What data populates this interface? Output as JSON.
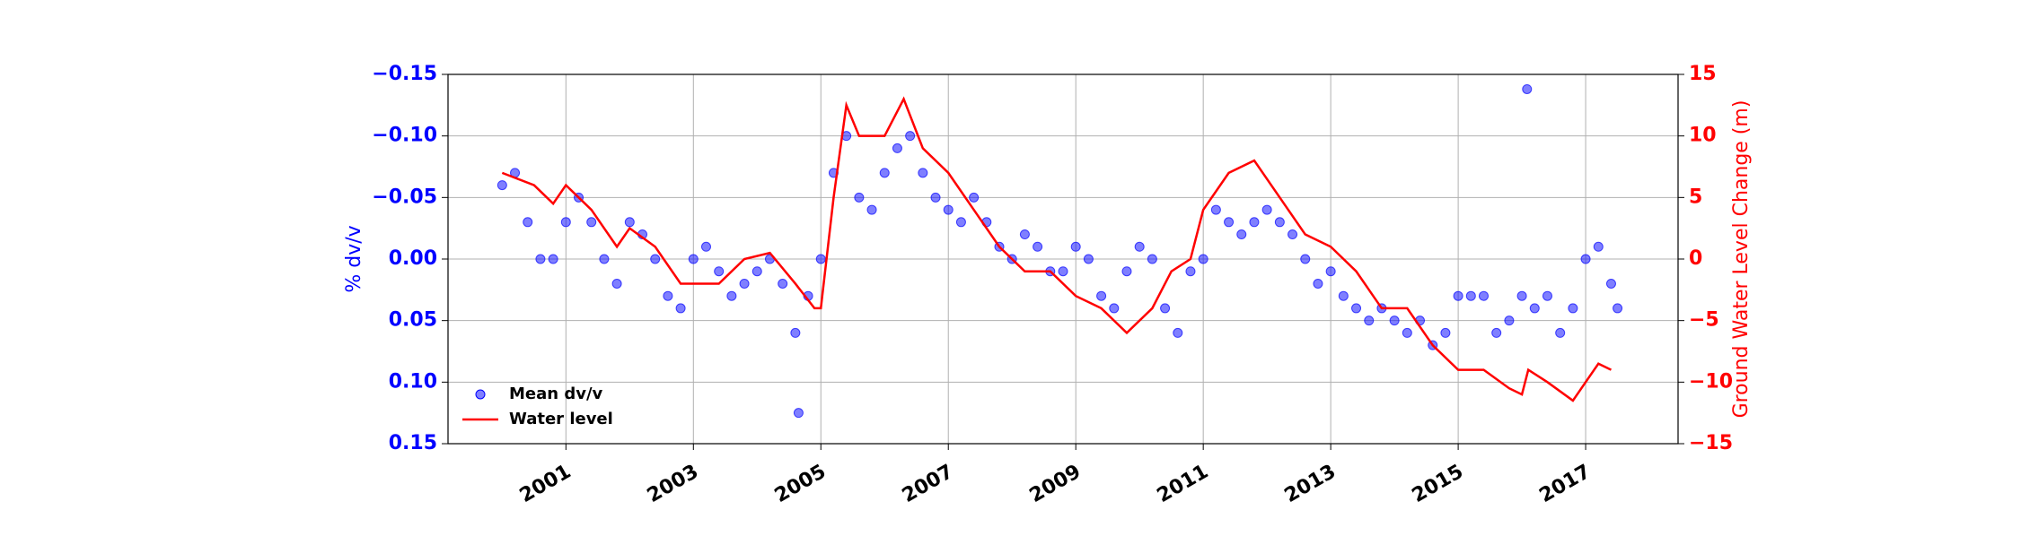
{
  "chart_data": {
    "type": "scatter",
    "y_label": "% dv/v",
    "y2_label": "Ground Water Level Change (m)",
    "xlim": [
      1999.15,
      2018.45
    ],
    "xticks": [
      2001,
      2003,
      2005,
      2007,
      2009,
      2011,
      2013,
      2015,
      2017
    ],
    "ylim": [
      0.15,
      -0.15
    ],
    "yticks": [
      {
        "value": -0.15,
        "label": "−0.15"
      },
      {
        "value": -0.1,
        "label": "−0.10"
      },
      {
        "value": -0.05,
        "label": "−0.05"
      },
      {
        "value": 0,
        "label": "0.00"
      },
      {
        "value": 0.05,
        "label": "0.05"
      },
      {
        "value": 0.1,
        "label": "0.10"
      },
      {
        "value": 0.15,
        "label": "0.15"
      }
    ],
    "y2lim": [
      -15,
      15
    ],
    "y2ticks": [
      {
        "value": -15,
        "label": "−15"
      },
      {
        "value": -10,
        "label": "−10"
      },
      {
        "value": -5,
        "label": "−5"
      },
      0,
      5,
      10,
      15
    ],
    "grid": true,
    "legend": "lower left",
    "series": [
      {
        "name": "Mean dv/v",
        "color": "#0000ff",
        "kind": "scatter",
        "x": [
          2000.0,
          2000.2,
          2000.4,
          2000.6,
          2000.8,
          2001.0,
          2001.2,
          2001.4,
          2001.6,
          2001.8,
          2002.0,
          2002.2,
          2002.4,
          2002.6,
          2002.8,
          2003.0,
          2003.2,
          2003.4,
          2003.6,
          2003.8,
          2004.0,
          2004.2,
          2004.4,
          2004.6,
          2004.65,
          2004.8,
          2005.0,
          2005.2,
          2005.4,
          2005.6,
          2005.8,
          2006.0,
          2006.2,
          2006.4,
          2006.6,
          2006.8,
          2007.0,
          2007.2,
          2007.4,
          2007.6,
          2007.8,
          2008.0,
          2008.2,
          2008.4,
          2008.6,
          2008.8,
          2009.0,
          2009.2,
          2009.4,
          2009.6,
          2009.8,
          2010.0,
          2010.2,
          2010.4,
          2010.6,
          2010.8,
          2011.0,
          2011.2,
          2011.4,
          2011.6,
          2011.8,
          2012.0,
          2012.2,
          2012.4,
          2012.6,
          2012.8,
          2013.0,
          2013.2,
          2013.4,
          2013.6,
          2013.8,
          2014.0,
          2014.2,
          2014.4,
          2014.6,
          2014.8,
          2015.0,
          2015.2,
          2015.4,
          2015.6,
          2015.8,
          2016.0,
          2016.08,
          2016.2,
          2016.4,
          2016.6,
          2016.8,
          2017.0,
          2017.2,
          2017.4,
          2017.5
        ],
        "values": [
          -0.06,
          -0.07,
          -0.03,
          0.0,
          0.0,
          -0.03,
          -0.05,
          -0.03,
          0.0,
          0.02,
          -0.03,
          -0.02,
          0.0,
          0.03,
          0.04,
          0.0,
          -0.01,
          0.01,
          0.03,
          0.02,
          0.01,
          0.0,
          0.02,
          0.06,
          0.125,
          0.03,
          0.0,
          -0.07,
          -0.1,
          -0.05,
          -0.04,
          -0.07,
          -0.09,
          -0.1,
          -0.07,
          -0.05,
          -0.04,
          -0.03,
          -0.05,
          -0.03,
          -0.01,
          0.0,
          -0.02,
          -0.01,
          0.01,
          0.01,
          -0.01,
          0.0,
          0.03,
          0.04,
          0.01,
          -0.01,
          0.0,
          0.04,
          0.06,
          0.01,
          0.0,
          -0.04,
          -0.03,
          -0.02,
          -0.03,
          -0.04,
          -0.03,
          -0.02,
          0.0,
          0.02,
          0.01,
          0.03,
          0.04,
          0.05,
          0.04,
          0.05,
          0.06,
          0.05,
          0.07,
          0.06,
          0.03,
          0.03,
          0.03,
          0.06,
          0.05,
          0.03,
          -0.138,
          0.04,
          0.03,
          0.06,
          0.04,
          0.0,
          -0.01,
          0.02,
          0.04
        ]
      },
      {
        "name": "Water level",
        "color": "#ff0000",
        "kind": "line",
        "axis": "y2",
        "x": [
          2000.0,
          2000.5,
          2000.8,
          2001.0,
          2001.4,
          2001.8,
          2002.0,
          2002.4,
          2002.8,
          2003.4,
          2003.8,
          2004.2,
          2004.6,
          2004.9,
          2005.0,
          2005.2,
          2005.4,
          2005.6,
          2006.0,
          2006.3,
          2006.6,
          2007.0,
          2007.4,
          2007.8,
          2008.2,
          2008.6,
          2009.0,
          2009.4,
          2009.8,
          2010.2,
          2010.5,
          2010.8,
          2011.0,
          2011.4,
          2011.8,
          2012.2,
          2012.6,
          2013.0,
          2013.4,
          2013.8,
          2014.2,
          2014.6,
          2015.0,
          2015.4,
          2015.8,
          2016.0,
          2016.1,
          2016.4,
          2016.8,
          2017.0,
          2017.2,
          2017.4
        ],
        "values": [
          7,
          6,
          4.5,
          6,
          4,
          1,
          2.5,
          1,
          -2,
          -2,
          0,
          0.5,
          -2,
          -4,
          -4,
          5,
          12.5,
          10,
          10,
          13,
          9,
          7,
          4,
          1,
          -1,
          -1,
          -3,
          -4,
          -6,
          -4,
          -1,
          0,
          4,
          7,
          8,
          5,
          2,
          1,
          -1,
          -4,
          -4,
          -7,
          -9,
          -9,
          -10.5,
          -11,
          -9,
          -10,
          -11.5,
          -10,
          -8.5,
          -9
        ]
      }
    ]
  }
}
